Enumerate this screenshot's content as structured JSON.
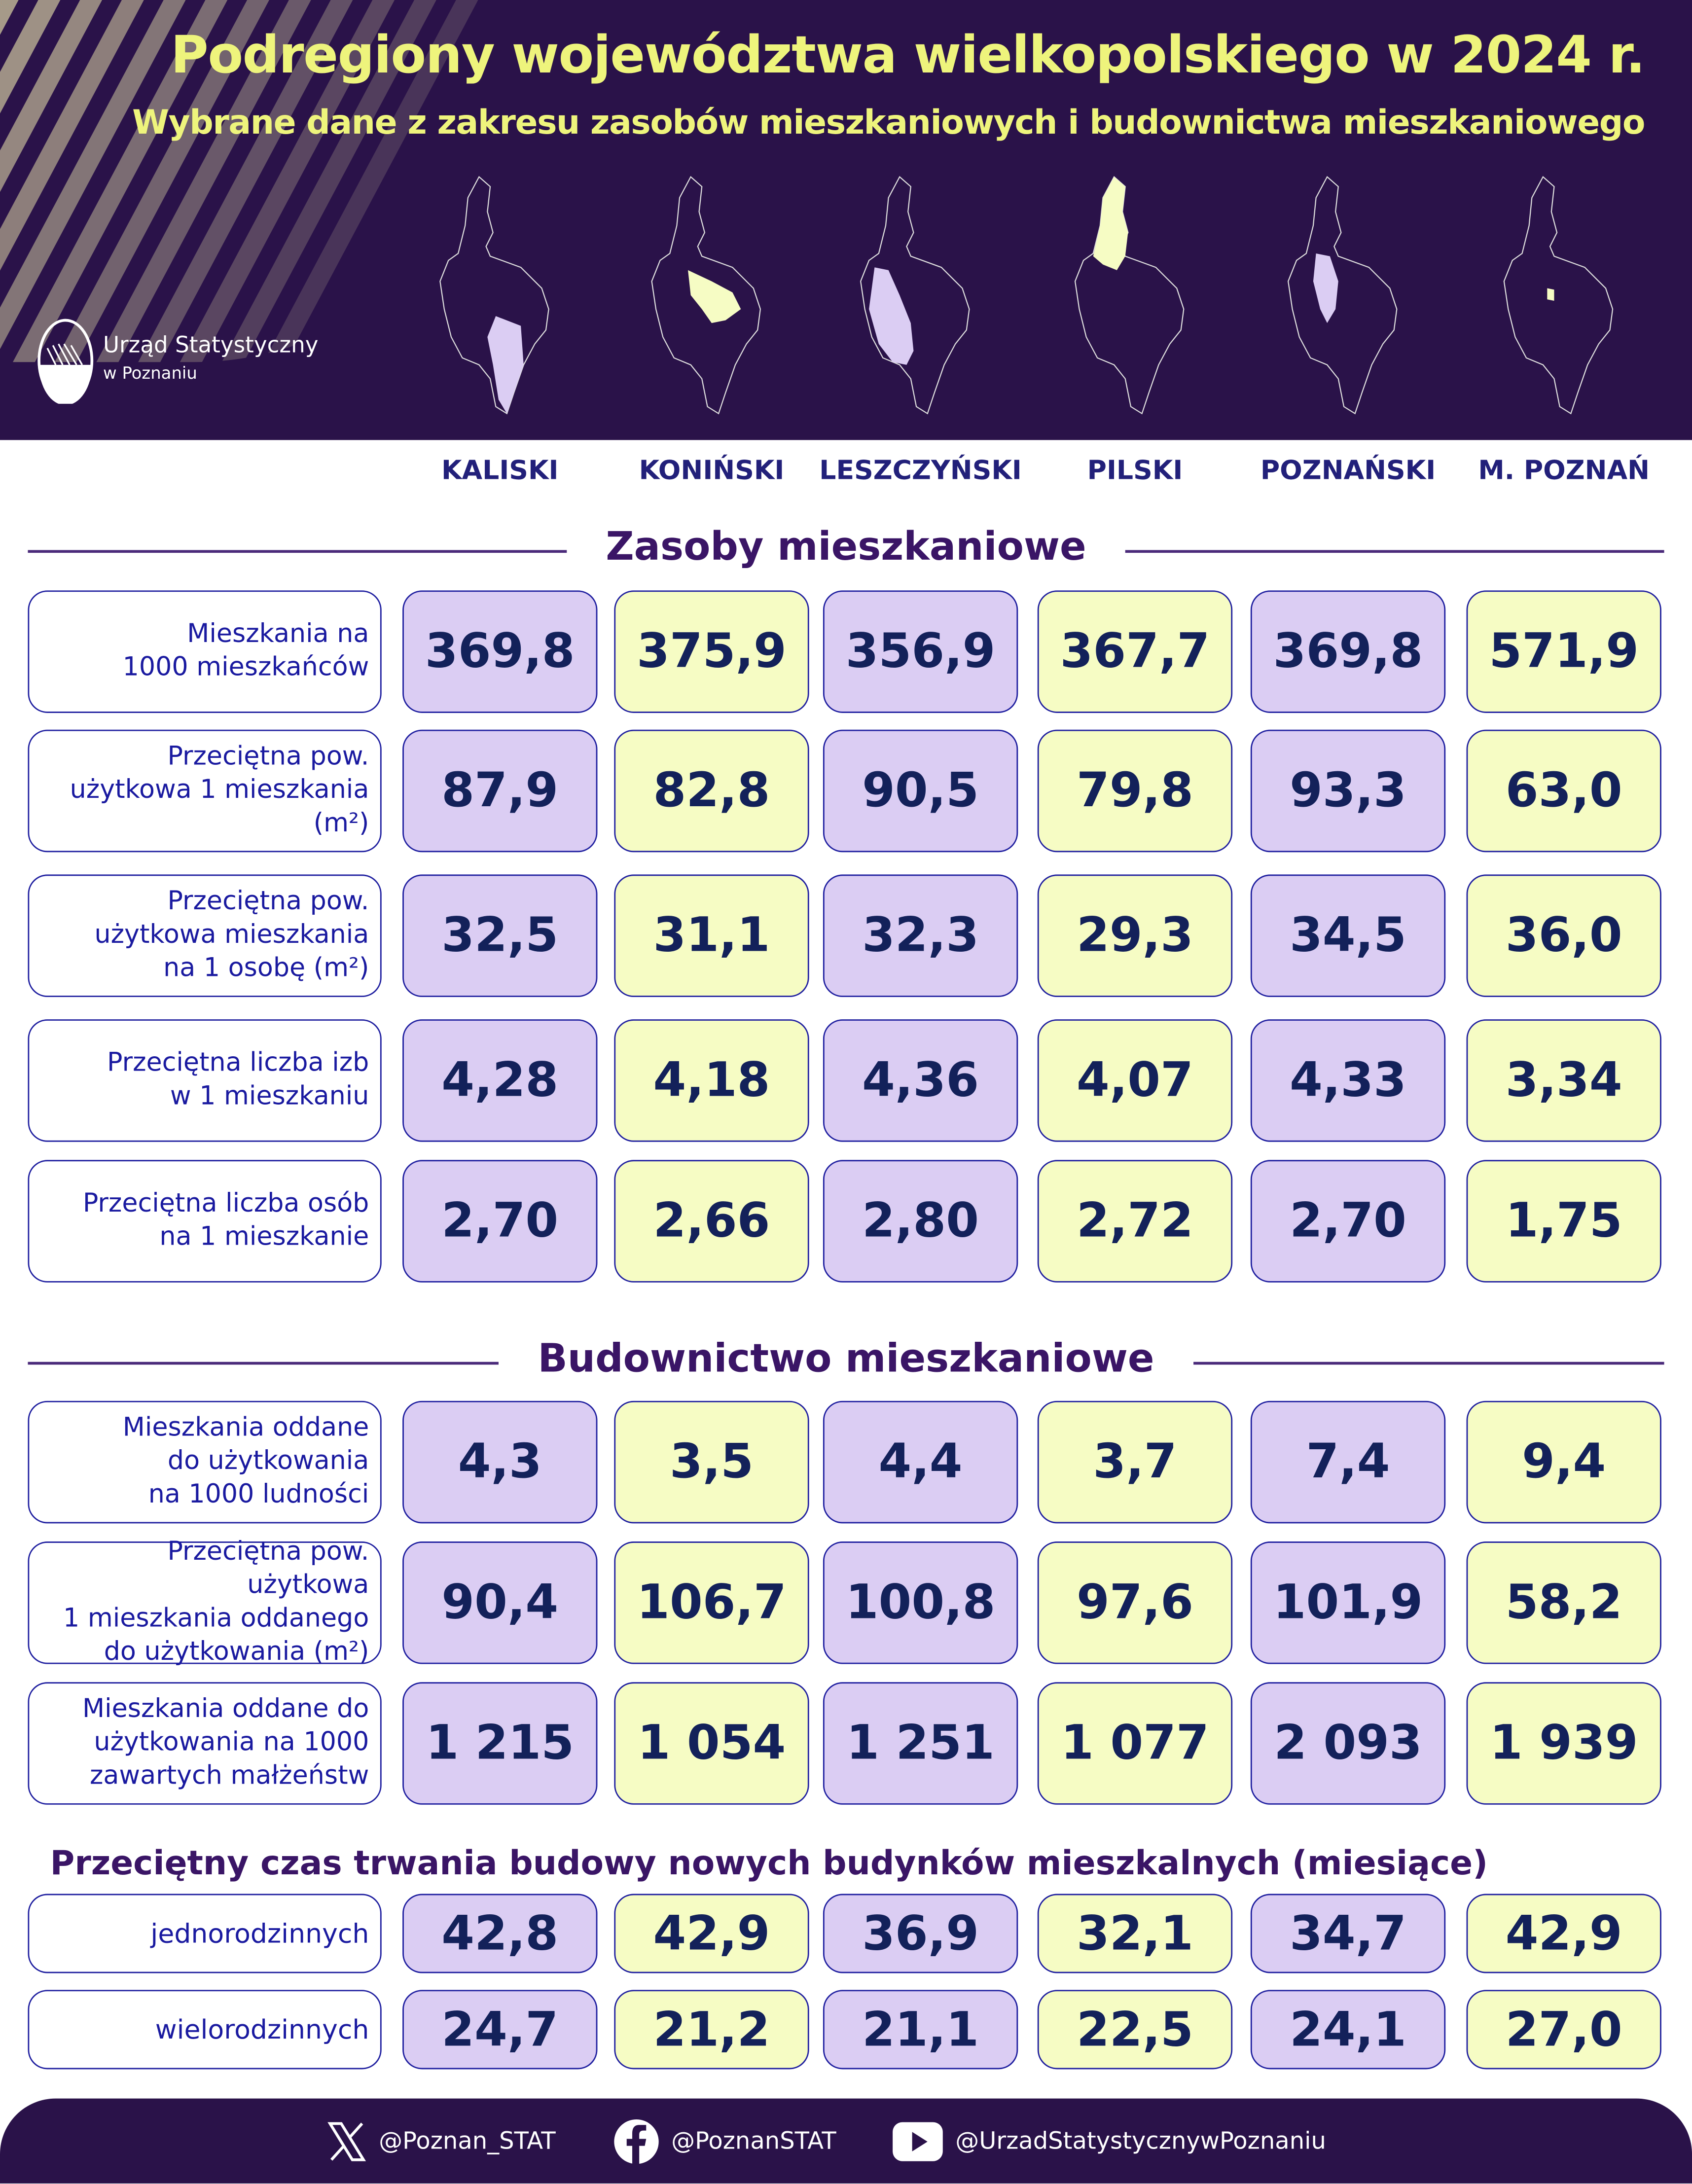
{
  "header": {
    "title": "Podregiony województwa wielkopolskiego w 2024 r.",
    "subtitle": "Wybrane dane z zakresu zasobów mieszkaniowych i budownictwa mieszkaniowego",
    "logo_line1": "Urząd Statystyczny",
    "logo_line2": "w Poznaniu"
  },
  "colors": {
    "dark": "#2a1249",
    "title_yellow": "#eef47c",
    "lilac": "#dbcdf3",
    "light_yellow": "#f6fcc4",
    "border": "#2020a0",
    "value": "#13215a"
  },
  "columns": [
    "KALISKI",
    "KONIŃSKI",
    "LESZCZYŃSKI",
    "PILSKI",
    "POZNAŃSKI",
    "M. POZNAŃ"
  ],
  "sections": [
    {
      "title": "Zasoby mieszkaniowe",
      "rows": [
        {
          "label": "Mieszkania na\n1000 mieszkańców",
          "values": [
            "369,8",
            "375,9",
            "356,9",
            "367,7",
            "369,8",
            "571,9"
          ]
        },
        {
          "label": "Przeciętna pow.\nużytkowa 1 mieszkania\n(m²)",
          "values": [
            "87,9",
            "82,8",
            "90,5",
            "79,8",
            "93,3",
            "63,0"
          ]
        },
        {
          "label": "Przeciętna pow.\nużytkowa mieszkania\nna 1 osobę (m²)",
          "values": [
            "32,5",
            "31,1",
            "32,3",
            "29,3",
            "34,5",
            "36,0"
          ]
        },
        {
          "label": "Przeciętna liczba izb\nw 1 mieszkaniu",
          "values": [
            "4,28",
            "4,18",
            "4,36",
            "4,07",
            "4,33",
            "3,34"
          ]
        },
        {
          "label": "Przeciętna liczba osób\nna 1 mieszkanie",
          "values": [
            "2,70",
            "2,66",
            "2,80",
            "2,72",
            "2,70",
            "1,75"
          ]
        }
      ]
    },
    {
      "title": "Budownictwo mieszkaniowe",
      "rows": [
        {
          "label": "Mieszkania oddane\ndo użytkowania\nna 1000 ludności",
          "values": [
            "4,3",
            "3,5",
            "4,4",
            "3,7",
            "7,4",
            "9,4"
          ]
        },
        {
          "label": "Przeciętna pow. użytkowa\n1 mieszkania oddanego\ndo użytkowania (m²)",
          "values": [
            "90,4",
            "106,7",
            "100,8",
            "97,6",
            "101,9",
            "58,2"
          ]
        },
        {
          "label": "Mieszkania oddane do\nużytkowania na 1000\nzawartych małżeństw",
          "values": [
            "1 215",
            "1 054",
            "1 251",
            "1 077",
            "2 093",
            "1 939"
          ]
        }
      ]
    },
    {
      "title": "Przeciętny czas trwania budowy nowych budynków mieszkalnych (miesiące)",
      "rows": [
        {
          "label": "jednorodzinnych",
          "values": [
            "42,8",
            "42,9",
            "36,9",
            "32,1",
            "34,7",
            "42,9"
          ]
        },
        {
          "label": "wielorodzinnych",
          "values": [
            "24,7",
            "21,2",
            "21,1",
            "22,5",
            "24,1",
            "27,0"
          ]
        }
      ]
    }
  ],
  "footer": {
    "items": [
      {
        "icon": "x-icon",
        "handle": "@Poznan_STAT"
      },
      {
        "icon": "facebook-icon",
        "handle": "@PoznanSTAT"
      },
      {
        "icon": "youtube-icon",
        "handle": "@UrzadStatystycznywPoznaniu"
      }
    ]
  }
}
